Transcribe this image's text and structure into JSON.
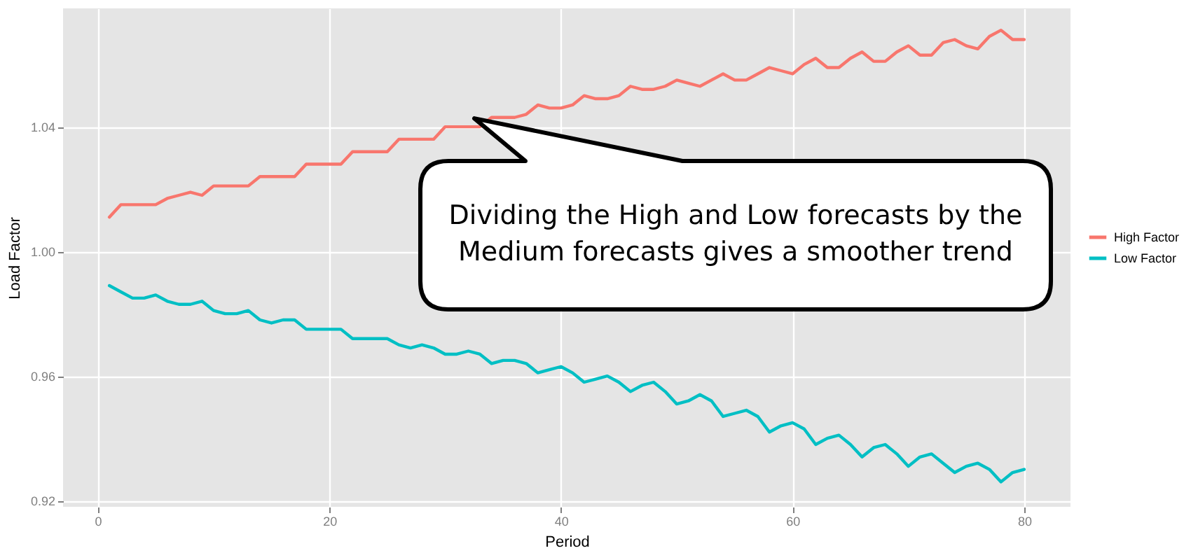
{
  "chart_data": {
    "type": "line",
    "xlabel": "Period",
    "ylabel": "Load Factor",
    "x": [
      1,
      2,
      3,
      4,
      5,
      6,
      7,
      8,
      9,
      10,
      11,
      12,
      13,
      14,
      15,
      16,
      17,
      18,
      19,
      20,
      21,
      22,
      23,
      24,
      25,
      26,
      27,
      28,
      29,
      30,
      31,
      32,
      33,
      34,
      35,
      36,
      37,
      38,
      39,
      40,
      41,
      42,
      43,
      44,
      45,
      46,
      47,
      48,
      49,
      50,
      51,
      52,
      53,
      54,
      55,
      56,
      57,
      58,
      59,
      60,
      61,
      62,
      63,
      64,
      65,
      66,
      67,
      68,
      69,
      70,
      71,
      72,
      73,
      74,
      75,
      76,
      77,
      78,
      79,
      80
    ],
    "series": [
      {
        "name": "High Factor",
        "color": "#f8766d",
        "values": [
          1.011,
          1.015,
          1.015,
          1.015,
          1.015,
          1.017,
          1.018,
          1.019,
          1.018,
          1.021,
          1.021,
          1.021,
          1.021,
          1.024,
          1.024,
          1.024,
          1.024,
          1.028,
          1.028,
          1.028,
          1.028,
          1.032,
          1.032,
          1.032,
          1.032,
          1.036,
          1.036,
          1.036,
          1.036,
          1.04,
          1.04,
          1.04,
          1.04,
          1.043,
          1.043,
          1.043,
          1.044,
          1.047,
          1.046,
          1.046,
          1.047,
          1.05,
          1.049,
          1.049,
          1.05,
          1.053,
          1.052,
          1.052,
          1.053,
          1.055,
          1.054,
          1.053,
          1.055,
          1.057,
          1.055,
          1.055,
          1.057,
          1.059,
          1.058,
          1.057,
          1.06,
          1.062,
          1.059,
          1.059,
          1.062,
          1.064,
          1.061,
          1.061,
          1.064,
          1.066,
          1.063,
          1.063,
          1.067,
          1.068,
          1.066,
          1.065,
          1.069,
          1.071,
          1.068,
          1.068
        ]
      },
      {
        "name": "Low Factor",
        "color": "#00bfc4",
        "values": [
          0.989,
          0.987,
          0.985,
          0.985,
          0.986,
          0.984,
          0.983,
          0.983,
          0.984,
          0.981,
          0.98,
          0.98,
          0.981,
          0.978,
          0.977,
          0.978,
          0.978,
          0.975,
          0.975,
          0.975,
          0.975,
          0.972,
          0.972,
          0.972,
          0.972,
          0.97,
          0.969,
          0.97,
          0.969,
          0.967,
          0.967,
          0.968,
          0.967,
          0.964,
          0.965,
          0.965,
          0.964,
          0.961,
          0.962,
          0.963,
          0.961,
          0.958,
          0.959,
          0.96,
          0.958,
          0.955,
          0.957,
          0.958,
          0.955,
          0.951,
          0.952,
          0.954,
          0.952,
          0.947,
          0.948,
          0.949,
          0.947,
          0.942,
          0.944,
          0.945,
          0.943,
          0.938,
          0.94,
          0.941,
          0.938,
          0.934,
          0.937,
          0.938,
          0.935,
          0.931,
          0.934,
          0.935,
          0.932,
          0.929,
          0.931,
          0.932,
          0.93,
          0.926,
          0.929,
          0.93
        ]
      }
    ],
    "xlim": [
      -3,
      84
    ],
    "xticks": [
      0,
      20,
      40,
      60,
      80
    ],
    "ylim": [
      0.918,
      1.078
    ],
    "yticks": [
      0.92,
      0.96,
      {
        "value": 1.0,
        "label": "1.00"
      },
      1.04
    ],
    "grid": true,
    "legend": "right",
    "annotations": [
      {
        "text": "Dividing the High and Low forecasts by the Medium forecasts gives a smoother trend",
        "x": 33,
        "y": 1.04
      }
    ]
  }
}
